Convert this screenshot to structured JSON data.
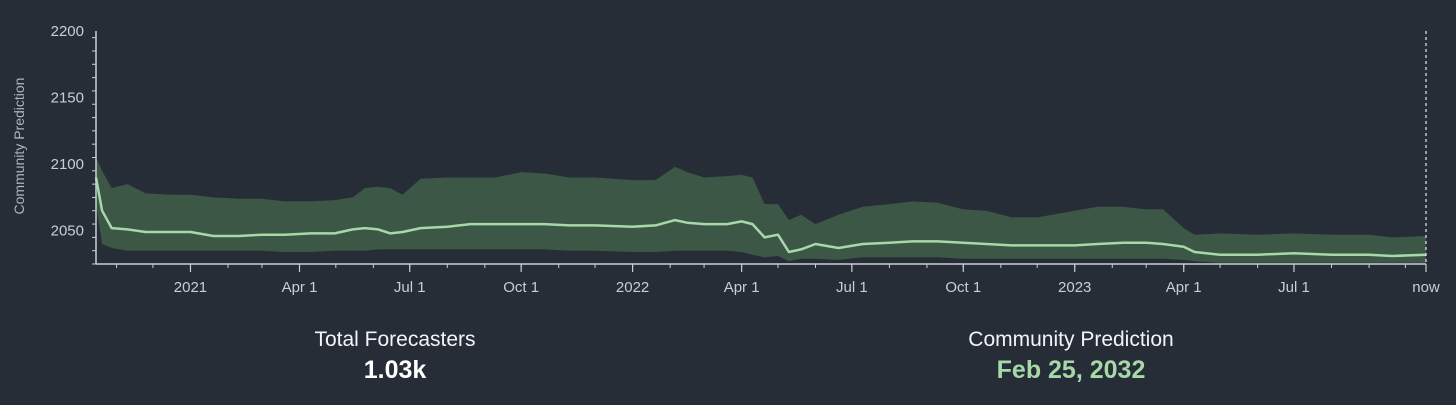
{
  "chart_data": {
    "type": "area",
    "ylabel": "Community Prediction",
    "ylim": [
      2025,
      2200
    ],
    "yticks": [
      2050,
      2100,
      2150,
      2200
    ],
    "xlim": [
      "2020-10-15",
      "2023-10-18"
    ],
    "xticks": [
      {
        "date": "2021-01-01",
        "label": "2021"
      },
      {
        "date": "2021-04-01",
        "label": "Apr 1"
      },
      {
        "date": "2021-07-01",
        "label": "Jul 1"
      },
      {
        "date": "2021-10-01",
        "label": "Oct 1"
      },
      {
        "date": "2022-01-01",
        "label": "2022"
      },
      {
        "date": "2022-04-01",
        "label": "Apr 1"
      },
      {
        "date": "2022-07-01",
        "label": "Jul 1"
      },
      {
        "date": "2022-10-01",
        "label": "Oct 1"
      },
      {
        "date": "2023-01-01",
        "label": "2023"
      },
      {
        "date": "2023-04-01",
        "label": "Apr 1"
      },
      {
        "date": "2023-07-01",
        "label": "Jul 1"
      },
      {
        "date": "2023-10-18",
        "label": "now"
      }
    ],
    "series": [
      {
        "x": [
          "2020-10-15",
          "2020-10-20",
          "2020-10-28",
          "2020-11-10",
          "2020-11-25",
          "2020-12-15",
          "2021-01-01",
          "2021-01-20",
          "2021-02-10",
          "2021-03-01",
          "2021-03-20",
          "2021-04-10",
          "2021-04-30",
          "2021-05-15",
          "2021-05-25",
          "2021-06-05",
          "2021-06-15",
          "2021-06-25",
          "2021-07-10",
          "2021-08-01",
          "2021-08-20",
          "2021-09-10",
          "2021-10-01",
          "2021-10-20",
          "2021-11-10",
          "2021-12-01",
          "2022-01-01",
          "2022-01-20",
          "2022-02-05",
          "2022-02-15",
          "2022-03-01",
          "2022-03-20",
          "2022-04-01",
          "2022-04-10",
          "2022-04-20",
          "2022-05-01",
          "2022-05-10",
          "2022-05-20",
          "2022-06-01",
          "2022-06-20",
          "2022-07-10",
          "2022-08-01",
          "2022-08-20",
          "2022-09-10",
          "2022-10-01",
          "2022-10-20",
          "2022-11-10",
          "2022-12-01",
          "2023-01-01",
          "2023-01-20",
          "2023-02-10",
          "2023-03-01",
          "2023-03-15",
          "2023-04-01",
          "2023-04-10",
          "2023-05-01",
          "2023-06-01",
          "2023-07-01",
          "2023-08-01",
          "2023-09-01",
          "2023-09-20",
          "2023-10-18"
        ],
        "median": [
          2090,
          2065,
          2052,
          2051,
          2049,
          2049,
          2049,
          2046,
          2046,
          2047,
          2047,
          2048,
          2048,
          2051,
          2052,
          2051,
          2048,
          2049,
          2052,
          2053,
          2055,
          2055,
          2055,
          2055,
          2054,
          2054,
          2053,
          2054,
          2058,
          2056,
          2055,
          2055,
          2057,
          2055,
          2045,
          2047,
          2034,
          2036,
          2040,
          2037,
          2040,
          2041,
          2042,
          2042,
          2041,
          2040,
          2039,
          2039,
          2039,
          2040,
          2041,
          2041,
          2040,
          2038,
          2034,
          2032,
          2032,
          2033,
          2032,
          2032,
          2031,
          2032
        ],
        "upper": [
          2105,
          2095,
          2082,
          2085,
          2078,
          2077,
          2077,
          2075,
          2074,
          2074,
          2072,
          2072,
          2073,
          2075,
          2082,
          2083,
          2082,
          2077,
          2089,
          2090,
          2090,
          2090,
          2094,
          2093,
          2090,
          2090,
          2088,
          2088,
          2098,
          2094,
          2090,
          2091,
          2092,
          2090,
          2070,
          2070,
          2058,
          2062,
          2055,
          2062,
          2068,
          2070,
          2072,
          2071,
          2066,
          2065,
          2060,
          2060,
          2065,
          2068,
          2068,
          2066,
          2066,
          2052,
          2047,
          2048,
          2047,
          2048,
          2047,
          2047,
          2045,
          2046
        ],
        "lower": [
          2070,
          2040,
          2037,
          2035,
          2035,
          2035,
          2035,
          2035,
          2035,
          2035,
          2034,
          2034,
          2035,
          2035,
          2035,
          2036,
          2036,
          2036,
          2036,
          2036,
          2036,
          2036,
          2036,
          2036,
          2035,
          2035,
          2034,
          2034,
          2035,
          2035,
          2035,
          2035,
          2034,
          2032,
          2030,
          2031,
          2027,
          2029,
          2029,
          2028,
          2030,
          2030,
          2030,
          2030,
          2029,
          2029,
          2029,
          2029,
          2029,
          2029,
          2029,
          2029,
          2029,
          2028,
          2027,
          2026,
          2026,
          2026,
          2026,
          2026,
          2026,
          2026
        ]
      }
    ],
    "colors": {
      "background": "#262d37",
      "band": "#3c5745",
      "line": "#a6d8a9",
      "axis": "#c9ced6"
    }
  },
  "stats": {
    "total_forecasters_label": "Total Forecasters",
    "total_forecasters_value": "1.03k",
    "community_prediction_label": "Community Prediction",
    "community_prediction_value": "Feb 25, 2032"
  }
}
